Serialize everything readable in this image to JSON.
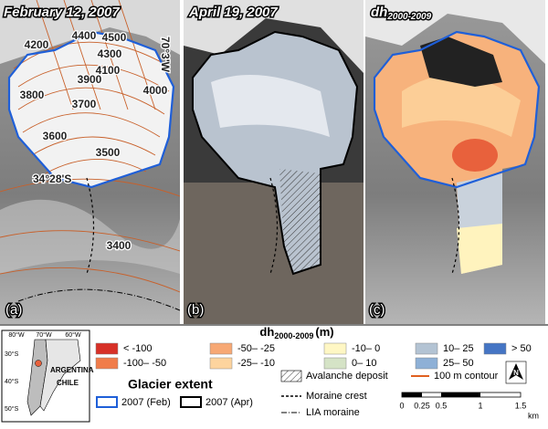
{
  "panels": [
    {
      "title": "February 12, 2007",
      "letter": "(a)",
      "contour_labels": [
        "4200",
        "4400",
        "4500",
        "4300",
        "4100",
        "3900",
        "3800",
        "3700",
        "4000",
        "3600",
        "3500",
        "3400"
      ],
      "coords": [
        "70°3'W",
        "34°28'S"
      ]
    },
    {
      "title": "April 19, 2007",
      "letter": "(b)"
    },
    {
      "title_main": "dh",
      "title_sub": "2000-2009",
      "letter": "(c)"
    }
  ],
  "legend": {
    "dh_title": {
      "main": "dh",
      "sub": "2000-2009",
      "unit": "(m)"
    },
    "classes": [
      {
        "label": "< -100",
        "color": "#d73027"
      },
      {
        "label": "-100– -50",
        "color": "#f07c4a"
      },
      {
        "label": "-50– -25",
        "color": "#f7a874"
      },
      {
        "label": "-25– -10",
        "color": "#fdd49e"
      },
      {
        "label": "-10– 0",
        "color": "#fff7c4"
      },
      {
        "label": "0– 10",
        "color": "#d5e3c6"
      },
      {
        "label": "10– 25",
        "color": "#b3c3d3"
      },
      {
        "label": "25– 50",
        "color": "#8eb0d6"
      },
      {
        "label": "> 50",
        "color": "#4575c4"
      }
    ],
    "glacier_extent": {
      "title": "Glacier extent",
      "items": [
        "2007 (Feb)",
        "2007 (Apr)"
      ]
    },
    "avalanche": "Avalanche deposit",
    "contour": "100 m contour",
    "moraine": "Moraine crest",
    "lia": "LIA moraine",
    "scale": {
      "ticks": [
        "0",
        "0.25",
        "0.5",
        "1",
        "1.5"
      ],
      "unit": "km"
    },
    "north": "N"
  },
  "inset": {
    "lon": [
      "80°W",
      "70°W",
      "60°W"
    ],
    "lat": [
      "30°S",
      "40°S",
      "50°S"
    ],
    "countries": [
      "ARGENTINA",
      "CHILE"
    ]
  }
}
